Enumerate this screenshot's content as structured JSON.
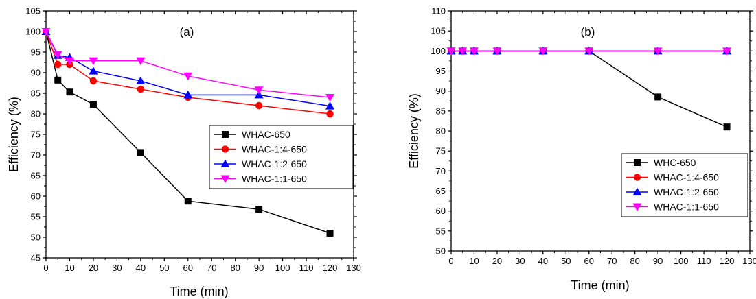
{
  "chart_data": [
    {
      "type": "line",
      "annotation": "(a)",
      "xlabel": "Time (min)",
      "ylabel": "Efficiency (%)",
      "xlim": [
        0,
        130
      ],
      "ylim": [
        45,
        105
      ],
      "xticks": [
        0,
        10,
        20,
        30,
        40,
        50,
        60,
        70,
        80,
        90,
        100,
        110,
        120,
        130
      ],
      "yticks": [
        45,
        50,
        55,
        60,
        65,
        70,
        75,
        80,
        85,
        90,
        95,
        100,
        105
      ],
      "grid": false,
      "legend_position": "right",
      "series": [
        {
          "name": "WHAC-650",
          "color": "#000000",
          "marker": "square",
          "x": [
            0,
            5,
            10,
            20,
            40,
            60,
            90,
            120
          ],
          "y": [
            100,
            88.2,
            85.3,
            82.3,
            70.6,
            58.8,
            56.8,
            51.0
          ]
        },
        {
          "name": "WHAC-1:4-650",
          "color": "#ff0000",
          "marker": "circle",
          "x": [
            0,
            5,
            10,
            20,
            40,
            60,
            90,
            120
          ],
          "y": [
            100,
            92.0,
            92.0,
            88.0,
            86.0,
            84.0,
            82.0,
            80.0
          ]
        },
        {
          "name": "WHAC-1:2-650",
          "color": "#0000ff",
          "marker": "triangle-up",
          "x": [
            0,
            5,
            10,
            20,
            40,
            60,
            90,
            120
          ],
          "y": [
            100,
            94.2,
            93.7,
            90.4,
            88.0,
            84.6,
            84.6,
            81.9
          ]
        },
        {
          "name": "WHAC-1:1-650",
          "color": "#ff00ff",
          "marker": "triangle-down",
          "x": [
            0,
            5,
            10,
            20,
            40,
            60,
            90,
            120
          ],
          "y": [
            100,
            94.4,
            92.9,
            92.9,
            92.9,
            89.2,
            85.8,
            84.0
          ]
        }
      ]
    },
    {
      "type": "line",
      "annotation": "(b)",
      "xlabel": "Time (min)",
      "ylabel": "Efficiency (%)",
      "xlim": [
        0,
        130
      ],
      "ylim": [
        50,
        110
      ],
      "xticks": [
        0,
        10,
        20,
        30,
        40,
        50,
        60,
        70,
        80,
        90,
        100,
        110,
        120,
        130
      ],
      "yticks": [
        50,
        55,
        60,
        65,
        70,
        75,
        80,
        85,
        90,
        95,
        100,
        105,
        110
      ],
      "grid": false,
      "legend_position": "bottom-right",
      "series": [
        {
          "name": "WHC-650",
          "color": "#000000",
          "marker": "square",
          "x": [
            0,
            5,
            10,
            20,
            40,
            60,
            90,
            120
          ],
          "y": [
            100,
            100,
            100,
            100,
            100,
            100,
            88.5,
            81.0
          ]
        },
        {
          "name": "WHAC-1:4-650",
          "color": "#ff0000",
          "marker": "circle",
          "x": [
            0,
            5,
            10,
            20,
            40,
            60,
            90,
            120
          ],
          "y": [
            100,
            100,
            100,
            100,
            100,
            100,
            100,
            100
          ]
        },
        {
          "name": "WHAC-1:2-650",
          "color": "#0000ff",
          "marker": "triangle-up",
          "x": [
            0,
            5,
            10,
            20,
            40,
            60,
            90,
            120
          ],
          "y": [
            100,
            100,
            100,
            100,
            100,
            100,
            100,
            100
          ]
        },
        {
          "name": "WHAC-1:1-650",
          "color": "#ff00ff",
          "marker": "triangle-down",
          "x": [
            0,
            5,
            10,
            20,
            40,
            60,
            90,
            120
          ],
          "y": [
            100,
            100,
            100,
            100,
            100,
            100,
            100,
            100
          ]
        }
      ]
    }
  ]
}
